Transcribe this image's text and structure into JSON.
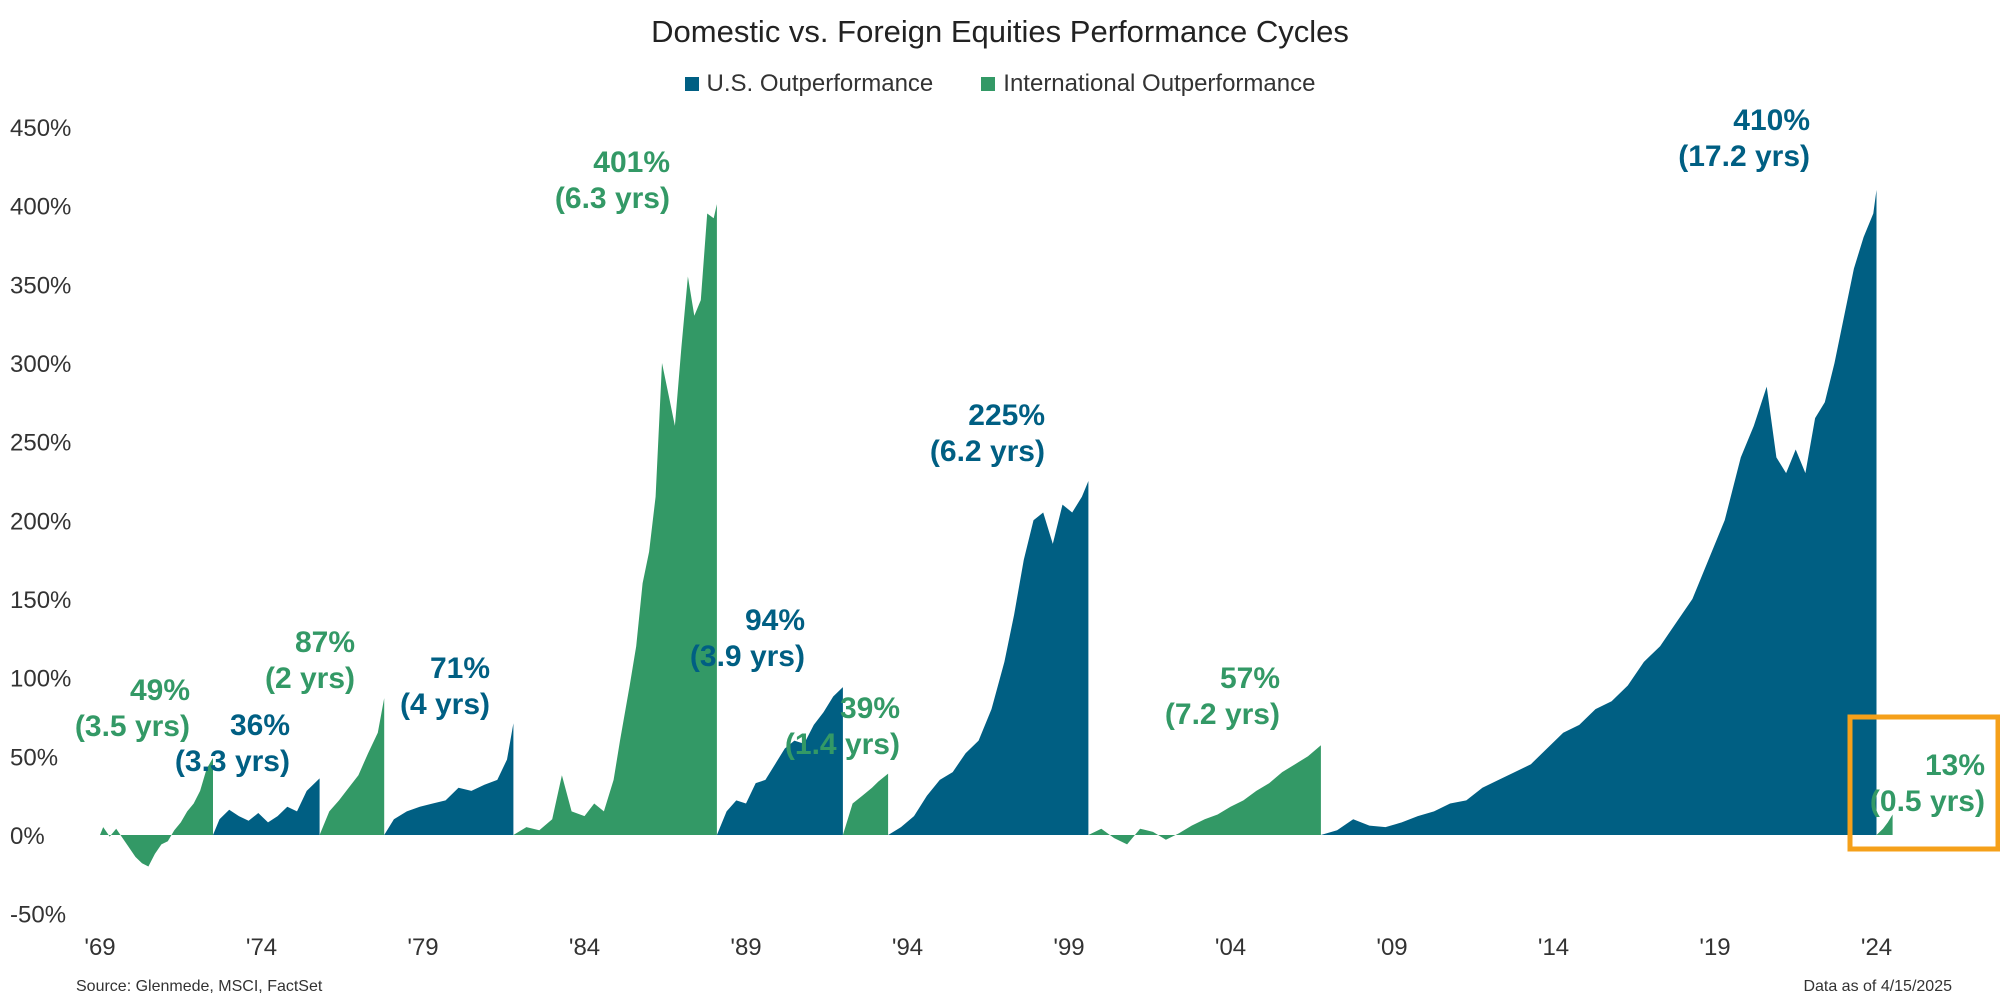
{
  "chart_data": {
    "type": "area",
    "title": "Domestic vs. Foreign Equities Performance Cycles",
    "xlabel": "",
    "ylabel": "",
    "ylim": [
      -50,
      450
    ],
    "yticks": [
      "450%",
      "400%",
      "350%",
      "300%",
      "250%",
      "200%",
      "150%",
      "100%",
      "50%",
      "0%",
      "-50%"
    ],
    "ytick_values": [
      450,
      400,
      350,
      300,
      250,
      200,
      150,
      100,
      50,
      0,
      -50
    ],
    "xlim": [
      1969,
      2030
    ],
    "xticks": [
      "'69",
      "'74",
      "'79",
      "'84",
      "'89",
      "'94",
      "'99",
      "'04",
      "'09",
      "'14",
      "'19",
      "'24"
    ],
    "xtick_values": [
      1969,
      1974,
      1979,
      1984,
      1989,
      1994,
      1999,
      2004,
      2009,
      2014,
      2019,
      2024
    ],
    "series": [
      {
        "name": "U.S. Outperformance",
        "color": "#005f83"
      },
      {
        "name": "International Outperformance",
        "color": "#339966"
      }
    ],
    "cycles": [
      {
        "group": "International Outperformance",
        "start": 1969.0,
        "end": 1972.5,
        "peak": 49,
        "label_value": "49%",
        "label_duration": "(3.5 yrs)",
        "points": [
          [
            1969.0,
            0
          ],
          [
            1969.1,
            5
          ],
          [
            1969.3,
            -1
          ],
          [
            1969.5,
            4
          ],
          [
            1969.7,
            -2
          ],
          [
            1969.9,
            -8
          ],
          [
            1970.1,
            -14
          ],
          [
            1970.3,
            -18
          ],
          [
            1970.5,
            -20
          ],
          [
            1970.7,
            -12
          ],
          [
            1970.9,
            -6
          ],
          [
            1971.1,
            -4
          ],
          [
            1971.3,
            3
          ],
          [
            1971.5,
            8
          ],
          [
            1971.7,
            15
          ],
          [
            1971.9,
            20
          ],
          [
            1972.1,
            28
          ],
          [
            1972.3,
            42
          ],
          [
            1972.5,
            49
          ]
        ]
      },
      {
        "group": "U.S. Outperformance",
        "start": 1972.5,
        "end": 1975.8,
        "peak": 36,
        "label_value": "36%",
        "label_duration": "(3.3 yrs)",
        "points": [
          [
            1972.5,
            0
          ],
          [
            1972.7,
            10
          ],
          [
            1973.0,
            16
          ],
          [
            1973.3,
            12
          ],
          [
            1973.6,
            9
          ],
          [
            1973.9,
            14
          ],
          [
            1974.2,
            8
          ],
          [
            1974.5,
            12
          ],
          [
            1974.8,
            18
          ],
          [
            1975.1,
            15
          ],
          [
            1975.4,
            28
          ],
          [
            1975.8,
            36
          ]
        ]
      },
      {
        "group": "International Outperformance",
        "start": 1975.8,
        "end": 1977.8,
        "peak": 87,
        "label_value": "87%",
        "label_duration": "(2 yrs)",
        "points": [
          [
            1975.8,
            0
          ],
          [
            1976.1,
            15
          ],
          [
            1976.4,
            22
          ],
          [
            1976.7,
            30
          ],
          [
            1977.0,
            38
          ],
          [
            1977.3,
            52
          ],
          [
            1977.6,
            65
          ],
          [
            1977.8,
            87
          ]
        ]
      },
      {
        "group": "U.S. Outperformance",
        "start": 1977.8,
        "end": 1981.8,
        "peak": 71,
        "label_value": "71%",
        "label_duration": "(4 yrs)",
        "points": [
          [
            1977.8,
            0
          ],
          [
            1978.1,
            10
          ],
          [
            1978.5,
            15
          ],
          [
            1978.9,
            18
          ],
          [
            1979.3,
            20
          ],
          [
            1979.7,
            22
          ],
          [
            1980.1,
            30
          ],
          [
            1980.5,
            28
          ],
          [
            1980.9,
            32
          ],
          [
            1981.3,
            35
          ],
          [
            1981.6,
            48
          ],
          [
            1981.8,
            71
          ]
        ]
      },
      {
        "group": "International Outperformance",
        "start": 1981.8,
        "end": 1988.1,
        "peak": 401,
        "label_value": "401%",
        "label_duration": "(6.3 yrs)",
        "points": [
          [
            1981.8,
            0
          ],
          [
            1982.2,
            5
          ],
          [
            1982.6,
            3
          ],
          [
            1983.0,
            10
          ],
          [
            1983.3,
            38
          ],
          [
            1983.6,
            15
          ],
          [
            1984.0,
            12
          ],
          [
            1984.3,
            20
          ],
          [
            1984.6,
            15
          ],
          [
            1984.9,
            35
          ],
          [
            1985.1,
            60
          ],
          [
            1985.4,
            95
          ],
          [
            1985.6,
            120
          ],
          [
            1985.8,
            160
          ],
          [
            1986.0,
            180
          ],
          [
            1986.2,
            215
          ],
          [
            1986.4,
            300
          ],
          [
            1986.6,
            280
          ],
          [
            1986.8,
            260
          ],
          [
            1987.0,
            310
          ],
          [
            1987.2,
            355
          ],
          [
            1987.4,
            330
          ],
          [
            1987.6,
            340
          ],
          [
            1987.8,
            395
          ],
          [
            1988.0,
            392
          ],
          [
            1988.1,
            401
          ]
        ]
      },
      {
        "group": "U.S. Outperformance",
        "start": 1988.1,
        "end": 1992.0,
        "peak": 94,
        "label_value": "94%",
        "label_duration": "(3.9 yrs)",
        "points": [
          [
            1988.1,
            0
          ],
          [
            1988.4,
            15
          ],
          [
            1988.7,
            22
          ],
          [
            1989.0,
            20
          ],
          [
            1989.3,
            33
          ],
          [
            1989.6,
            35
          ],
          [
            1989.9,
            45
          ],
          [
            1990.2,
            55
          ],
          [
            1990.5,
            60
          ],
          [
            1990.8,
            58
          ],
          [
            1991.1,
            70
          ],
          [
            1991.4,
            78
          ],
          [
            1991.7,
            88
          ],
          [
            1992.0,
            94
          ]
        ]
      },
      {
        "group": "International Outperformance",
        "start": 1992.0,
        "end": 1993.4,
        "peak": 39,
        "label_value": "39%",
        "label_duration": "(1.4 yrs)",
        "points": [
          [
            1992.0,
            0
          ],
          [
            1992.3,
            20
          ],
          [
            1992.6,
            25
          ],
          [
            1992.9,
            30
          ],
          [
            1993.1,
            34
          ],
          [
            1993.4,
            39
          ]
        ]
      },
      {
        "group": "U.S. Outperformance",
        "start": 1993.4,
        "end": 1999.6,
        "peak": 225,
        "label_value": "225%",
        "label_duration": "(6.2 yrs)",
        "points": [
          [
            1993.4,
            0
          ],
          [
            1993.8,
            5
          ],
          [
            1994.2,
            12
          ],
          [
            1994.6,
            25
          ],
          [
            1995.0,
            35
          ],
          [
            1995.4,
            40
          ],
          [
            1995.8,
            52
          ],
          [
            1996.2,
            60
          ],
          [
            1996.6,
            80
          ],
          [
            1997.0,
            110
          ],
          [
            1997.3,
            140
          ],
          [
            1997.6,
            175
          ],
          [
            1997.9,
            200
          ],
          [
            1998.2,
            205
          ],
          [
            1998.5,
            185
          ],
          [
            1998.8,
            210
          ],
          [
            1999.1,
            205
          ],
          [
            1999.4,
            215
          ],
          [
            1999.6,
            225
          ]
        ]
      },
      {
        "group": "International Outperformance",
        "start": 1999.6,
        "end": 2006.8,
        "peak": 57,
        "label_value": "57%",
        "label_duration": "(7.2 yrs)",
        "points": [
          [
            1999.6,
            0
          ],
          [
            2000.0,
            4
          ],
          [
            2000.4,
            -2
          ],
          [
            2000.8,
            -6
          ],
          [
            2001.2,
            4
          ],
          [
            2001.6,
            2
          ],
          [
            2002.0,
            -3
          ],
          [
            2002.4,
            1
          ],
          [
            2002.8,
            6
          ],
          [
            2003.2,
            10
          ],
          [
            2003.6,
            13
          ],
          [
            2004.0,
            18
          ],
          [
            2004.4,
            22
          ],
          [
            2004.8,
            28
          ],
          [
            2005.2,
            33
          ],
          [
            2005.6,
            40
          ],
          [
            2006.0,
            45
          ],
          [
            2006.4,
            50
          ],
          [
            2006.8,
            57
          ]
        ]
      },
      {
        "group": "U.S. Outperformance",
        "start": 2006.8,
        "end": 2024.0,
        "peak": 410,
        "label_value": "410%",
        "label_duration": "(17.2 yrs)",
        "points": [
          [
            2006.8,
            0
          ],
          [
            2007.3,
            3
          ],
          [
            2007.8,
            10
          ],
          [
            2008.3,
            6
          ],
          [
            2008.8,
            5
          ],
          [
            2009.3,
            8
          ],
          [
            2009.8,
            12
          ],
          [
            2010.3,
            15
          ],
          [
            2010.8,
            20
          ],
          [
            2011.3,
            22
          ],
          [
            2011.8,
            30
          ],
          [
            2012.3,
            35
          ],
          [
            2012.8,
            40
          ],
          [
            2013.3,
            45
          ],
          [
            2013.8,
            55
          ],
          [
            2014.3,
            65
          ],
          [
            2014.8,
            70
          ],
          [
            2015.3,
            80
          ],
          [
            2015.8,
            85
          ],
          [
            2016.3,
            95
          ],
          [
            2016.8,
            110
          ],
          [
            2017.3,
            120
          ],
          [
            2017.8,
            135
          ],
          [
            2018.3,
            150
          ],
          [
            2018.8,
            175
          ],
          [
            2019.3,
            200
          ],
          [
            2019.8,
            240
          ],
          [
            2020.2,
            260
          ],
          [
            2020.6,
            285
          ],
          [
            2020.9,
            240
          ],
          [
            2021.2,
            230
          ],
          [
            2021.5,
            245
          ],
          [
            2021.8,
            230
          ],
          [
            2022.1,
            265
          ],
          [
            2022.4,
            275
          ],
          [
            2022.7,
            300
          ],
          [
            2023.0,
            330
          ],
          [
            2023.3,
            360
          ],
          [
            2023.6,
            380
          ],
          [
            2023.9,
            395
          ],
          [
            2024.0,
            410
          ]
        ]
      },
      {
        "group": "International Outperformance",
        "start": 2024.0,
        "end": 2024.5,
        "peak": 13,
        "label_value": "13%",
        "label_duration": "(0.5 yrs)",
        "highlighted": true,
        "points": [
          [
            2024.0,
            0
          ],
          [
            2024.2,
            4
          ],
          [
            2024.35,
            8
          ],
          [
            2024.5,
            13
          ]
        ]
      }
    ],
    "highlight_color": "#f5a01a"
  },
  "footer": {
    "source": "Source: Glenmede, MSCI, FactSet",
    "as_of": "Data as of 4/15/2025"
  }
}
